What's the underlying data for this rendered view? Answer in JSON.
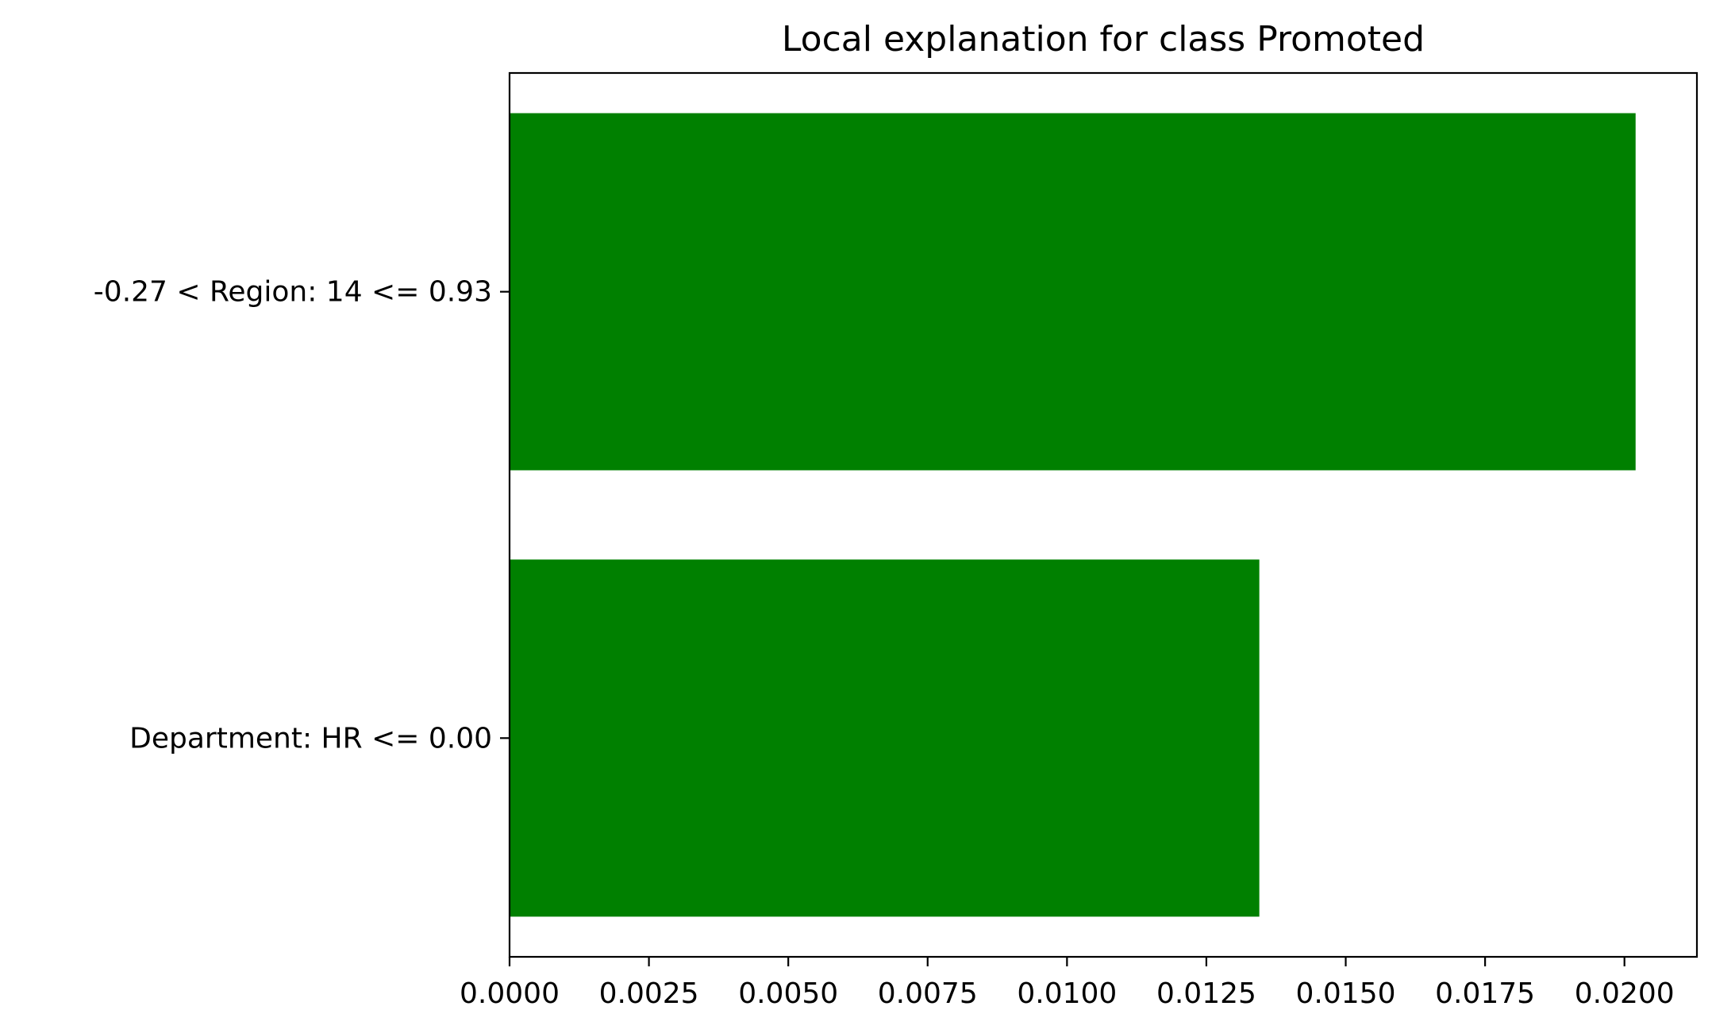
{
  "chart_data": {
    "type": "bar",
    "orientation": "horizontal",
    "title": "Local explanation for class Promoted",
    "xlabel": "",
    "ylabel": "",
    "categories": [
      "-0.27 < Region: 14 <= 0.93",
      "Department: HR <= 0.00"
    ],
    "values": [
      0.0202,
      0.01345
    ],
    "bar_color": "#008000",
    "xlim": [
      0,
      0.0213
    ],
    "xticks": [
      0.0,
      0.0025,
      0.005,
      0.0075,
      0.01,
      0.0125,
      0.015,
      0.0175,
      0.02
    ],
    "xtick_labels": [
      "0.0000",
      "0.0025",
      "0.0050",
      "0.0075",
      "0.0100",
      "0.0125",
      "0.0150",
      "0.0175",
      "0.0200"
    ],
    "grid": false,
    "legend": "none"
  }
}
